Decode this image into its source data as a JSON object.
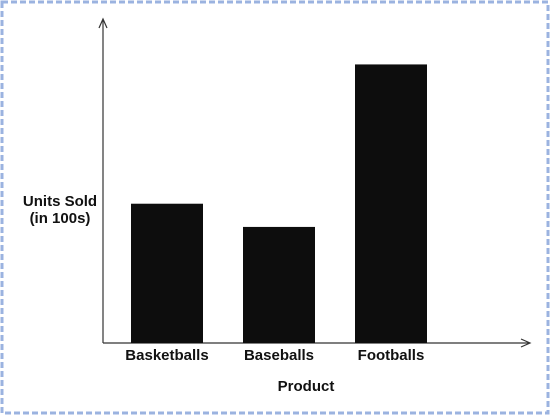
{
  "chart_data": {
    "type": "bar",
    "y_label": [
      "Units Sold",
      "(in 100s)"
    ],
    "x_label": "Product",
    "categories": [
      "Basketballs",
      "Baseballs",
      "Footballs"
    ],
    "values": [
      6,
      5,
      12
    ],
    "color": "#0d0d0d",
    "ylim": [
      0,
      14
    ]
  }
}
